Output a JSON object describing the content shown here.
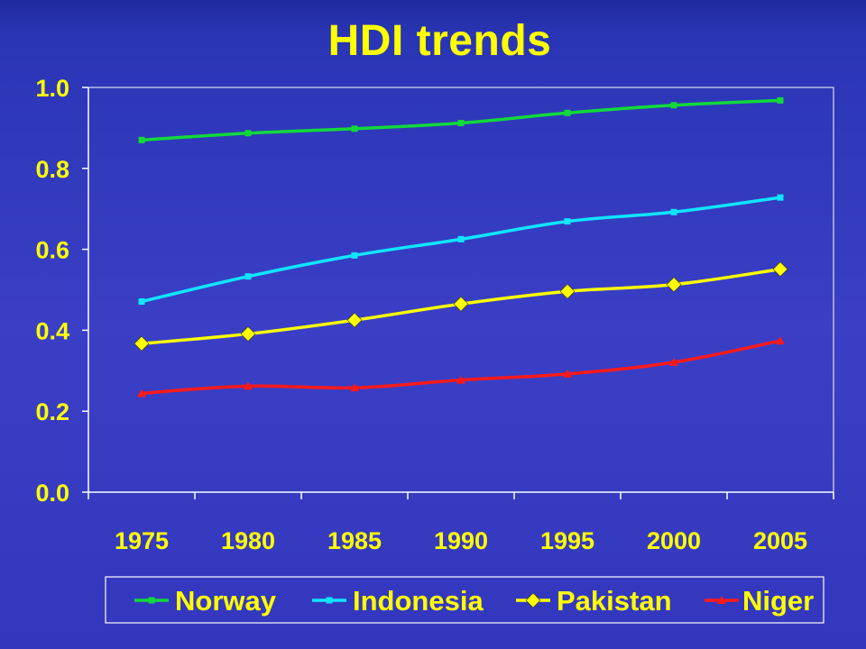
{
  "chart_data": {
    "type": "line",
    "title": "HDI trends",
    "categories": [
      "1975",
      "1980",
      "1985",
      "1990",
      "1995",
      "2000",
      "2005"
    ],
    "y_ticks": [
      "0.0",
      "0.2",
      "0.4",
      "0.6",
      "0.8",
      "1.0"
    ],
    "ylim": [
      0,
      1
    ],
    "grid": false,
    "legend_position": "bottom",
    "series": [
      {
        "name": "Norway",
        "color": "#12d93a",
        "marker": "square",
        "values": [
          0.87,
          0.887,
          0.898,
          0.912,
          0.937,
          0.956,
          0.968
        ]
      },
      {
        "name": "Indonesia",
        "color": "#10e5ff",
        "marker": "square",
        "values": [
          0.471,
          0.533,
          0.585,
          0.625,
          0.669,
          0.692,
          0.728
        ]
      },
      {
        "name": "Pakistan",
        "color": "#ffff00",
        "marker": "diamond",
        "values": [
          0.367,
          0.391,
          0.425,
          0.465,
          0.496,
          0.513,
          0.551
        ]
      },
      {
        "name": "Niger",
        "color": "#ff1a1a",
        "marker": "triangle",
        "values": [
          0.244,
          0.262,
          0.258,
          0.277,
          0.292,
          0.321,
          0.374
        ]
      }
    ]
  }
}
